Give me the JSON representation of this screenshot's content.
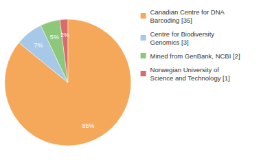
{
  "chart_data": {
    "type": "pie",
    "categories": [
      "Canadian Centre for DNA\nBarcoding [35]",
      "Centre for Biodiversity\nGenomics [3]",
      "Mined from GenBank, NCBI [2]",
      "Norwegian University of\nScience and Technology [1]"
    ],
    "values": [
      85,
      7,
      5,
      2
    ],
    "value_labels": [
      "85%",
      "7%",
      "5%",
      "2%"
    ],
    "colors": [
      "#F5A85A",
      "#A8C8E8",
      "#8DC87A",
      "#D96B6B"
    ],
    "data_labels": true,
    "legend": "upper right"
  }
}
